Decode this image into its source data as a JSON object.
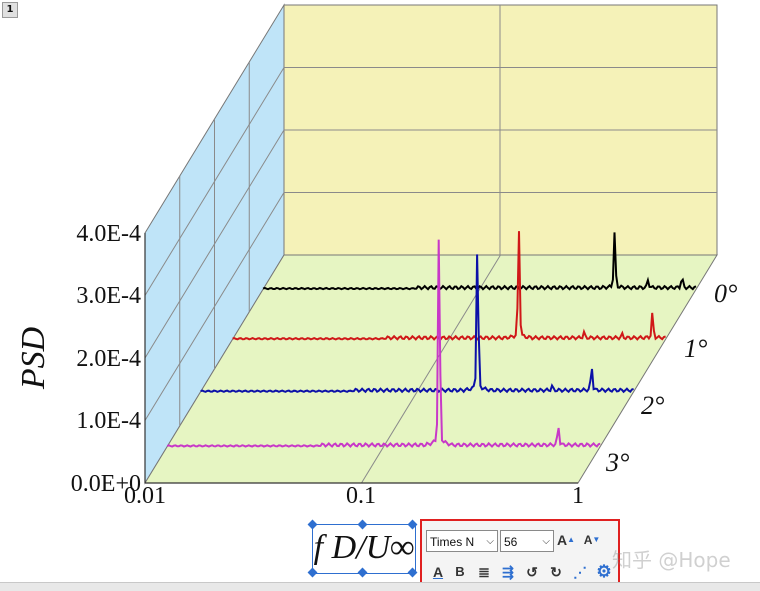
{
  "layer_tab": "1",
  "chart_data": {
    "type": "line",
    "subtype": "3d-waterfall",
    "ylabel": "PSD",
    "xlabel": "f D/U∞",
    "x_scale": "log",
    "x_ticks": [
      "0.01",
      "0.1",
      "1"
    ],
    "y_ticks": [
      "0.0E+0",
      "1.0E-4",
      "2.0E-4",
      "3.0E-4",
      "4.0E-4"
    ],
    "ylim": [
      0,
      0.0004
    ],
    "xlim": [
      0.01,
      1
    ],
    "categories": [
      "0°",
      "1°",
      "2°",
      "3°"
    ],
    "grid": true,
    "colors": {
      "back_wall": "#f5f2b8",
      "side_wall": "#bfe4f8",
      "floor": "#e6f5c2"
    },
    "series": [
      {
        "name": "0°",
        "color": "#000000",
        "peaks": [
          {
            "x": 0.42,
            "y": 8.3e-05
          },
          {
            "x": 0.6,
            "y": 1.2e-05
          },
          {
            "x": 0.86,
            "y": 1.6e-05
          }
        ]
      },
      {
        "name": "1°",
        "color": "#d01818",
        "peaks": [
          {
            "x": 0.21,
            "y": 0.000167
          },
          {
            "x": 0.42,
            "y": 8e-06
          },
          {
            "x": 0.63,
            "y": 5e-06
          },
          {
            "x": 0.87,
            "y": 3.7e-05
          }
        ]
      },
      {
        "name": "2°",
        "color": "#0c10a8",
        "peaks": [
          {
            "x": 0.19,
            "y": 0.000231
          },
          {
            "x": 0.42,
            "y": 6e-06
          },
          {
            "x": 0.64,
            "y": 3.6e-05
          }
        ]
      },
      {
        "name": "3°",
        "color": "#c838c8",
        "peaks": [
          {
            "x": 0.18,
            "y": 0.000332
          },
          {
            "x": 0.64,
            "y": 2.9e-05
          }
        ]
      }
    ]
  },
  "toolbar": {
    "font_name": "Times N",
    "font_size": "56",
    "icons": [
      "font-color-icon",
      "bold-icon",
      "align-icon",
      "wrap-icon",
      "rotate-ccw-icon",
      "rotate-cw-icon",
      "link-icon",
      "gear-icon"
    ]
  },
  "watermark": "知乎 @Hope"
}
